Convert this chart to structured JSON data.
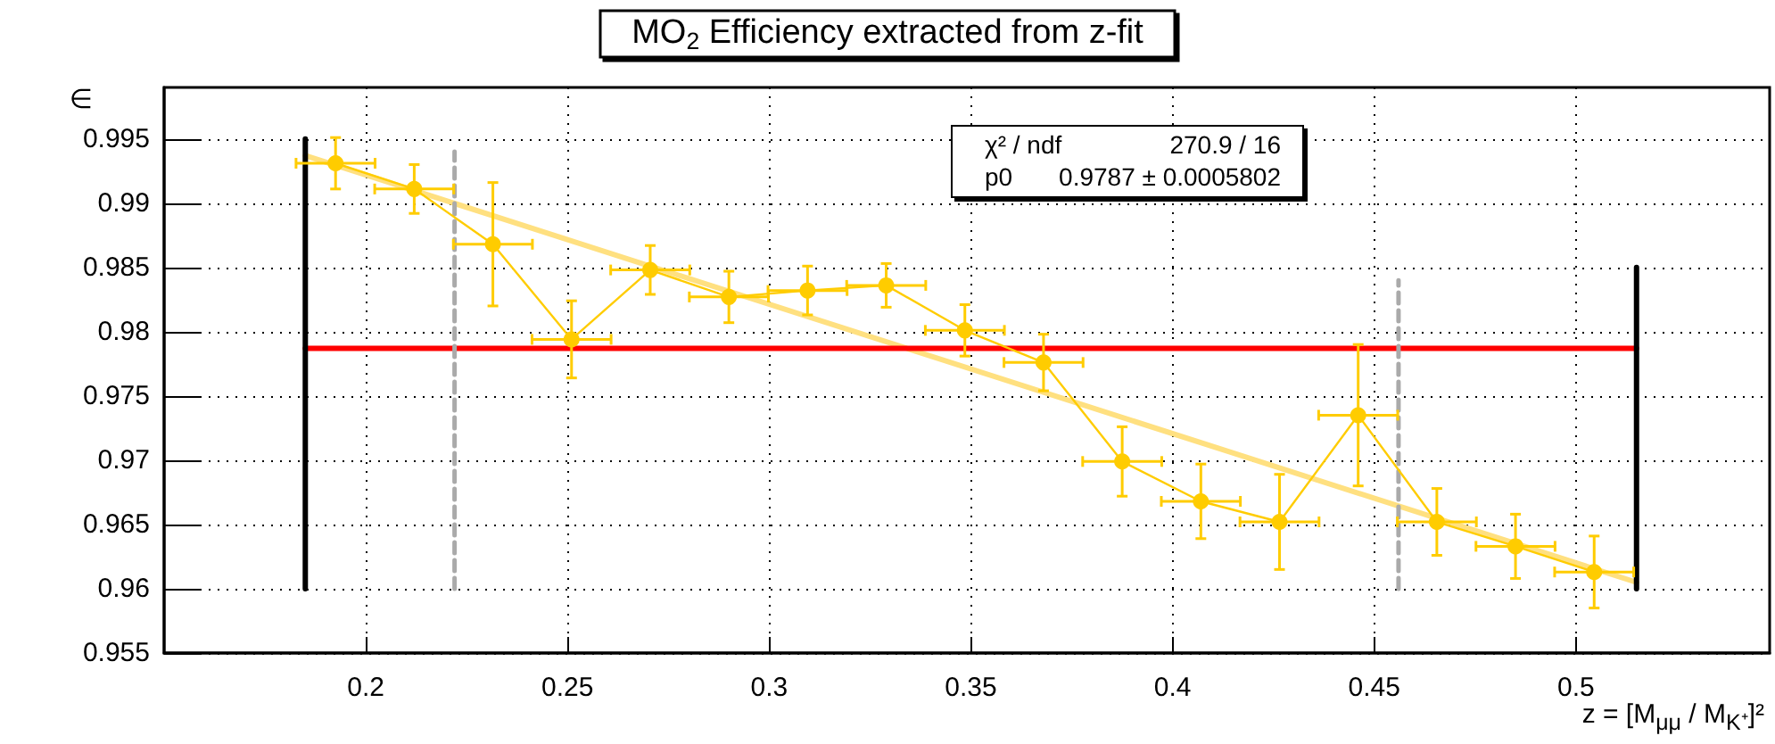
{
  "chart_data": {
    "type": "line",
    "title": "MO$_{2}$ Efficiency extracted from z-fit",
    "xlabel": "z = [M$_{μμ}$ / M$_{K⁺}$]²",
    "ylabel": "∈",
    "xlim": [
      0.15,
      0.548
    ],
    "ylim": [
      0.955,
      0.999
    ],
    "xticks": [
      0.2,
      0.25,
      0.3,
      0.35,
      0.4,
      0.45,
      0.5
    ],
    "yticks": [
      0.955,
      0.96,
      0.965,
      0.97,
      0.975,
      0.98,
      0.985,
      0.99,
      0.995
    ],
    "grid": true,
    "annotations": [
      "χ² / ndf",
      "270.9 / 16",
      "p0",
      "0.9787 ± 0.0005802"
    ],
    "series": [
      {
        "color": "#ffe080",
        "x": [
          0.185,
          0.515
        ],
        "values": [
          0.9937,
          0.9605
        ],
        "marker": "none",
        "line_style": "solid"
      },
      {
        "color": "#ff0000",
        "x": [
          0.185,
          0.515
        ],
        "values": [
          0.9787,
          0.9787
        ],
        "marker": "none",
        "line_style": "solid"
      },
      {
        "color": "#000000",
        "x": [
          0.185,
          0.185
        ],
        "values": [
          0.96,
          0.995
        ],
        "marker": "none",
        "line_style": "solid"
      },
      {
        "color": "#000000",
        "x": [
          0.515,
          0.515
        ],
        "values": [
          0.96,
          0.985
        ],
        "marker": "none",
        "line_style": "solid"
      },
      {
        "color": "#aaaaaa",
        "x": [
          0.222,
          0.222
        ],
        "values": [
          0.96,
          0.994
        ],
        "marker": "none",
        "line_style": "dashed"
      },
      {
        "color": "#aaaaaa",
        "x": [
          0.456,
          0.456
        ],
        "values": [
          0.96,
          0.984
        ],
        "marker": "none",
        "line_style": "dashed"
      },
      {
        "color": "#ffcc00",
        "marker": "circle",
        "line_style": "solid",
        "x": [
          0.1925,
          0.212,
          0.2315,
          0.251,
          0.2705,
          0.29,
          0.3095,
          0.329,
          0.3485,
          0.368,
          0.3875,
          0.407,
          0.4265,
          0.446,
          0.4655,
          0.485,
          0.5045
        ],
        "values": [
          0.9931,
          0.9911,
          0.9868,
          0.9794,
          0.9848,
          0.9827,
          0.9832,
          0.9836,
          0.9801,
          0.9776,
          0.9699,
          0.9668,
          0.9652,
          0.9735,
          0.9652,
          0.9633,
          0.9613
        ],
        "errors": [
          0.002,
          0.0019,
          0.0048,
          0.003,
          0.0019,
          0.002,
          0.0019,
          0.0017,
          0.002,
          0.0022,
          0.0027,
          0.0029,
          0.0037,
          0.0055,
          0.0026,
          0.0025,
          0.0028
        ],
        "xerrors": [
          0.0098,
          0.0098,
          0.0098,
          0.0098,
          0.0098,
          0.0098,
          0.0098,
          0.0098,
          0.0098,
          0.0098,
          0.0098,
          0.0098,
          0.0098,
          0.0098,
          0.0098,
          0.0098,
          0.0098
        ]
      }
    ]
  }
}
